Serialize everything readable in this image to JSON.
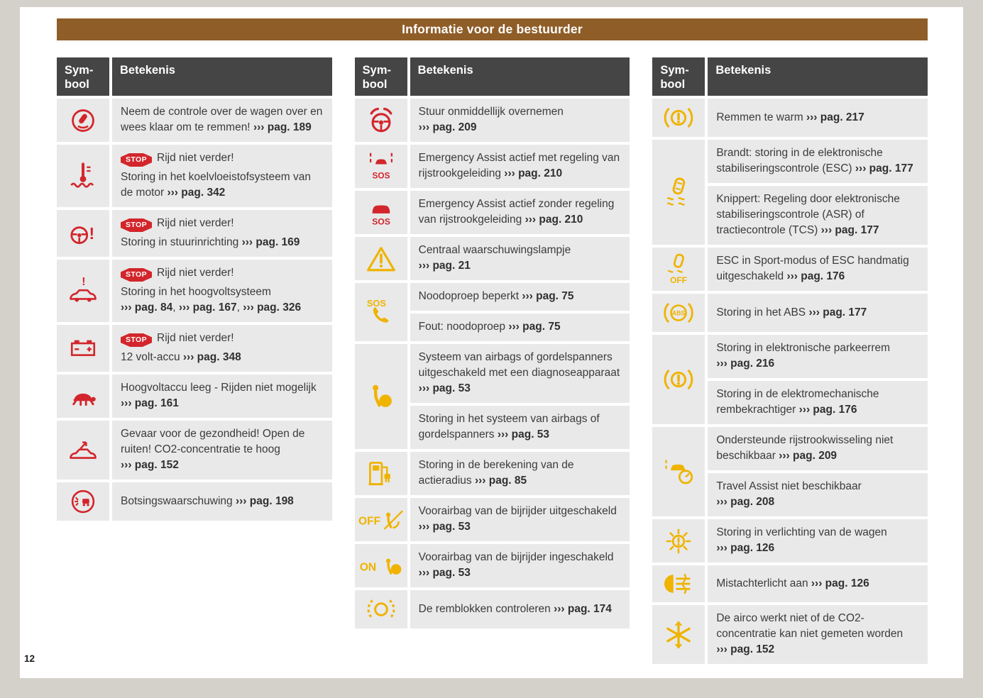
{
  "page": {
    "title": "Informatie voor de bestuurder",
    "number": "12"
  },
  "table_header": {
    "symbol": "Sym-bool",
    "meaning": "Betekenis"
  },
  "ref_marker": "›››",
  "stop_label": "STOP",
  "icon_labels": {
    "sos": "SOS",
    "off": "OFF",
    "on": "ON",
    "abs": "ABS"
  },
  "colors": {
    "title_bar_brown": "#8F5D27",
    "table_header_gray": "#454545",
    "row_gray": "#E9E9E9",
    "icon_red": "#D2262C",
    "icon_yellow": "#EFB300",
    "text": "#3B3B3B"
  },
  "tables": [
    {
      "groups": [
        {
          "icon": "take-over-and-brake-icon",
          "color": "icon_red",
          "entries": [
            {
              "paragraphs": [
                [
                  {
                    "txt": "Neem de controle over de wagen over en wees klaar om te remmen! "
                  },
                  {
                    "ref": "pag. 189"
                  }
                ]
              ]
            }
          ]
        },
        {
          "icon": "coolant-temperature-icon",
          "color": "icon_red",
          "entries": [
            {
              "paragraphs": [
                [
                  {
                    "stop": true
                  },
                  {
                    "txt": "Rijd niet verder!"
                  }
                ],
                [
                  {
                    "txt": "Storing in het koelvloeistofsysteem van de motor "
                  },
                  {
                    "ref": "pag. 342"
                  }
                ]
              ]
            }
          ]
        },
        {
          "icon": "steering-fault-icon",
          "color": "icon_red",
          "entries": [
            {
              "paragraphs": [
                [
                  {
                    "stop": true
                  },
                  {
                    "txt": "Rijd niet verder!"
                  }
                ],
                [
                  {
                    "txt": "Storing in stuurinrichting "
                  },
                  {
                    "ref": "pag. 169"
                  }
                ]
              ]
            }
          ]
        },
        {
          "icon": "high-voltage-system-icon",
          "color": "icon_red",
          "entries": [
            {
              "paragraphs": [
                [
                  {
                    "stop": true
                  },
                  {
                    "txt": "Rijd niet verder!"
                  }
                ],
                [
                  {
                    "txt": "Storing in het hoogvoltsysteem "
                  },
                  {
                    "ref": "pag. 84"
                  },
                  {
                    "txt": ", "
                  },
                  {
                    "ref": "pag. 167"
                  },
                  {
                    "txt": ", "
                  },
                  {
                    "ref": "pag. 326"
                  }
                ]
              ]
            }
          ]
        },
        {
          "icon": "battery-12v-icon",
          "color": "icon_red",
          "entries": [
            {
              "paragraphs": [
                [
                  {
                    "stop": true
                  },
                  {
                    "txt": "Rijd niet verder!"
                  }
                ],
                [
                  {
                    "txt": "12 volt-accu "
                  },
                  {
                    "ref": "pag. 348"
                  }
                ]
              ]
            }
          ]
        },
        {
          "icon": "turtle-icon",
          "color": "icon_red",
          "entries": [
            {
              "paragraphs": [
                [
                  {
                    "txt": "Hoogvoltaccu leeg - Rijden niet mogelijk "
                  },
                  {
                    "ref": "pag. 161"
                  }
                ]
              ]
            }
          ]
        },
        {
          "icon": "co2-concentration-icon",
          "color": "icon_red",
          "entries": [
            {
              "paragraphs": [
                [
                  {
                    "txt": "Gevaar voor de gezondheid! Open de ruiten! CO2-concentratie te hoog "
                  },
                  {
                    "ref": "pag. 152"
                  }
                ]
              ]
            }
          ]
        },
        {
          "icon": "collision-warning-icon",
          "color": "icon_red",
          "entries": [
            {
              "paragraphs": [
                [
                  {
                    "txt": "Botsingswaarschuwing "
                  },
                  {
                    "ref": "pag. 198"
                  }
                ]
              ]
            }
          ]
        }
      ]
    },
    {
      "groups": [
        {
          "icon": "hands-on-steering-icon",
          "color": "icon_red",
          "entries": [
            {
              "paragraphs": [
                [
                  {
                    "txt": "Stuur onmiddellijk overnemen "
                  },
                  {
                    "ref": "pag. 209"
                  }
                ]
              ]
            }
          ]
        },
        {
          "icon": "emergency-assist-lane-icon",
          "color": "icon_red",
          "entries": [
            {
              "paragraphs": [
                [
                  {
                    "txt": "Emergency Assist actief met regeling van rijstrookgeleiding "
                  },
                  {
                    "ref": "pag. 210"
                  }
                ]
              ]
            }
          ]
        },
        {
          "icon": "emergency-assist-icon",
          "color": "icon_red",
          "entries": [
            {
              "paragraphs": [
                [
                  {
                    "txt": "Emergency Assist actief zonder regeling van rijstrookgeleiding "
                  },
                  {
                    "ref": "pag. 210"
                  }
                ]
              ]
            }
          ]
        },
        {
          "icon": "warning-triangle-icon",
          "color": "icon_yellow",
          "entries": [
            {
              "paragraphs": [
                [
                  {
                    "txt": "Centraal waarschuwingslampje "
                  },
                  {
                    "ref": "pag. 21"
                  }
                ]
              ]
            }
          ]
        },
        {
          "icon": "sos-call-icon",
          "color": "icon_yellow",
          "entries": [
            {
              "paragraphs": [
                [
                  {
                    "txt": "Noodoproep beperkt "
                  },
                  {
                    "ref": "pag. 75"
                  }
                ]
              ]
            },
            {
              "paragraphs": [
                [
                  {
                    "txt": "Fout: noodoproep "
                  },
                  {
                    "ref": "pag. 75"
                  }
                ]
              ]
            }
          ]
        },
        {
          "icon": "airbag-system-icon",
          "color": "icon_yellow",
          "entries": [
            {
              "paragraphs": [
                [
                  {
                    "txt": "Systeem van airbags of gordelspanners uitgeschakeld met een diagnoseapparaat "
                  },
                  {
                    "ref": "pag. 53"
                  }
                ]
              ]
            },
            {
              "paragraphs": [
                [
                  {
                    "txt": "Storing in het systeem van airbags of gordelspanners "
                  },
                  {
                    "ref": "pag. 53"
                  }
                ]
              ]
            }
          ]
        },
        {
          "icon": "range-calculation-icon",
          "color": "icon_yellow",
          "entries": [
            {
              "paragraphs": [
                [
                  {
                    "txt": "Storing in de berekening van de actieradius "
                  },
                  {
                    "ref": "pag. 85"
                  }
                ]
              ]
            }
          ]
        },
        {
          "icon": "passenger-airbag-off-icon",
          "color": "icon_yellow",
          "entries": [
            {
              "paragraphs": [
                [
                  {
                    "txt": "Voorairbag van de bijrijder uitgeschakeld "
                  },
                  {
                    "ref": "pag. 53"
                  }
                ]
              ]
            }
          ]
        },
        {
          "icon": "passenger-airbag-on-icon",
          "color": "icon_yellow",
          "entries": [
            {
              "paragraphs": [
                [
                  {
                    "txt": "Voorairbag van de bijrijder ingeschakeld "
                  },
                  {
                    "ref": "pag. 53"
                  }
                ]
              ]
            }
          ]
        },
        {
          "icon": "brake-pads-icon",
          "color": "icon_yellow",
          "entries": [
            {
              "paragraphs": [
                [
                  {
                    "txt": "De remblokken controleren "
                  },
                  {
                    "ref": "pag. 174"
                  }
                ]
              ]
            }
          ]
        }
      ]
    },
    {
      "groups": [
        {
          "icon": "brakes-overheated-icon",
          "color": "icon_yellow",
          "entries": [
            {
              "paragraphs": [
                [
                  {
                    "txt": "Remmen te warm "
                  },
                  {
                    "ref": "pag. 217"
                  }
                ]
              ]
            }
          ]
        },
        {
          "icon": "esc-icon",
          "color": "icon_yellow",
          "entries": [
            {
              "paragraphs": [
                [
                  {
                    "txt": "Brandt: storing in de elektronische stabiliseringscontrole (ESC) "
                  },
                  {
                    "ref": "pag. 177"
                  }
                ]
              ]
            },
            {
              "paragraphs": [
                [
                  {
                    "txt": "Knippert: Regeling door elektronische stabiliseringscontrole (ASR) of tractiecontrole (TCS) "
                  },
                  {
                    "ref": "pag. 177"
                  }
                ]
              ]
            }
          ]
        },
        {
          "icon": "esc-off-icon",
          "color": "icon_yellow",
          "entries": [
            {
              "paragraphs": [
                [
                  {
                    "txt": "ESC in Sport-modus of ESC handmatig uitgeschakeld "
                  },
                  {
                    "ref": "pag. 176"
                  }
                ]
              ]
            }
          ]
        },
        {
          "icon": "abs-icon",
          "color": "icon_yellow",
          "entries": [
            {
              "paragraphs": [
                [
                  {
                    "txt": "Storing in het ABS "
                  },
                  {
                    "ref": "pag. 177"
                  }
                ]
              ]
            }
          ]
        },
        {
          "icon": "parking-brake-icon",
          "color": "icon_yellow",
          "entries": [
            {
              "paragraphs": [
                [
                  {
                    "txt": "Storing in elektronische parkeerrem "
                  },
                  {
                    "ref": "pag. 216"
                  }
                ]
              ]
            },
            {
              "paragraphs": [
                [
                  {
                    "txt": "Storing in de elektromechanische rembekrachtiger "
                  },
                  {
                    "ref": "pag. 176"
                  }
                ]
              ]
            }
          ]
        },
        {
          "icon": "lane-change-assist-icon",
          "color": "icon_yellow",
          "entries": [
            {
              "paragraphs": [
                [
                  {
                    "txt": "Ondersteunde rijstrookwisseling niet beschikbaar "
                  },
                  {
                    "ref": "pag. 209"
                  }
                ]
              ]
            },
            {
              "paragraphs": [
                [
                  {
                    "txt": "Travel Assist niet beschikbaar "
                  },
                  {
                    "ref": "pag. 208"
                  }
                ]
              ]
            }
          ]
        },
        {
          "icon": "exterior-light-fault-icon",
          "color": "icon_yellow",
          "entries": [
            {
              "paragraphs": [
                [
                  {
                    "txt": "Storing in verlichting van de wagen "
                  },
                  {
                    "ref": "pag. 126"
                  }
                ]
              ]
            }
          ]
        },
        {
          "icon": "rear-fog-light-icon",
          "color": "icon_yellow",
          "entries": [
            {
              "paragraphs": [
                [
                  {
                    "txt": "Mistachterlicht aan "
                  },
                  {
                    "ref": "pag. 126"
                  }
                ]
              ]
            }
          ]
        },
        {
          "icon": "air-conditioning-fault-icon",
          "color": "icon_yellow",
          "entries": [
            {
              "paragraphs": [
                [
                  {
                    "txt": "De airco werkt niet of de CO2-concentratie kan niet gemeten worden "
                  },
                  {
                    "ref": "pag. 152"
                  }
                ]
              ]
            }
          ]
        }
      ]
    }
  ]
}
